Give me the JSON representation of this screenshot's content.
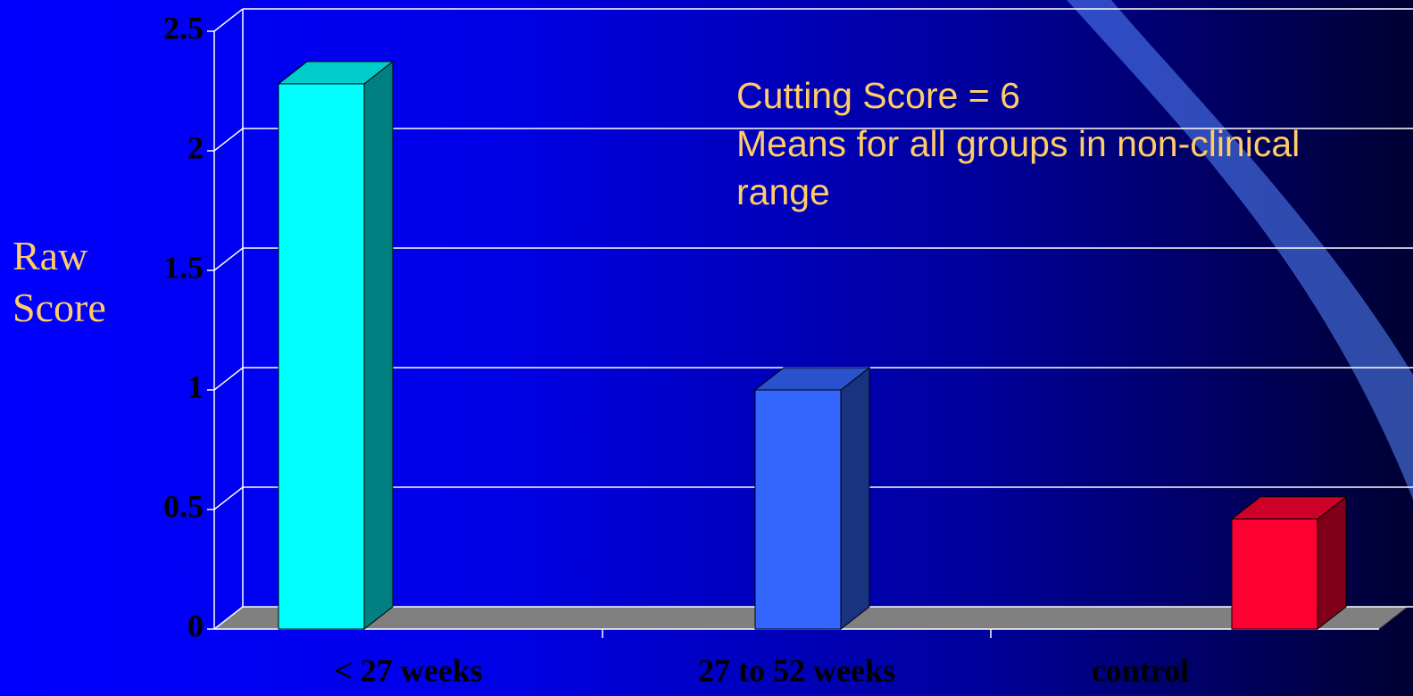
{
  "chart_data": {
    "type": "bar3d",
    "y_label": "Raw Score",
    "annotations": [
      "Cutting Score = 6",
      "Means for all groups in non-clinical range"
    ],
    "categories": [
      "< 27 weeks",
      "27 to 52 weeks",
      "control"
    ],
    "values": [
      2.28,
      1.0,
      0.46
    ],
    "colors": [
      "#00ffff",
      "#3366ff",
      "#ff0033"
    ],
    "ylim": [
      0,
      2.5
    ],
    "yticks": [
      0,
      0.5,
      1,
      1.5,
      2,
      2.5
    ],
    "grid": true
  }
}
